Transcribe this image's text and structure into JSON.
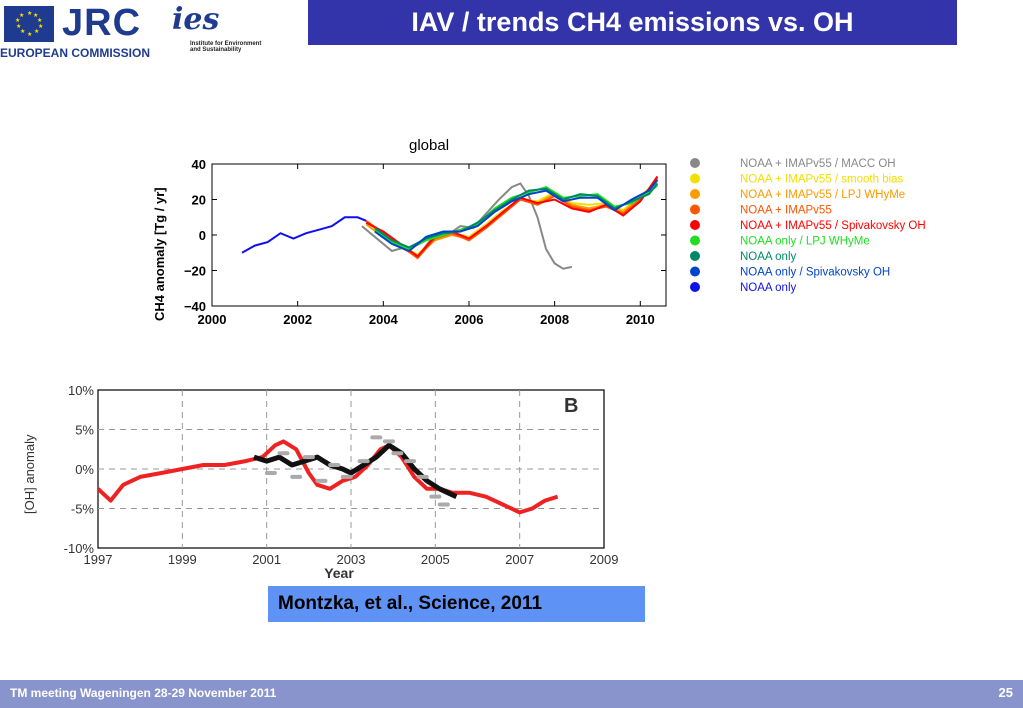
{
  "header": {
    "logo_text": "JRC",
    "organisation": "EUROPEAN COMMISSION",
    "ies_mark": "ies",
    "ies_subtitle": "Institute for Environment and Sustainability",
    "title": "IAV / trends CH4 emissions vs. OH"
  },
  "citation": "Montzka, et al., Science, 2011",
  "footer": {
    "left": "TM meeting Wageningen 28-29 November 2011",
    "page": "25"
  },
  "colors": {
    "title_bar": "#3333aa",
    "citation_box": "#5f92f5",
    "footer_bar": "#8a94cc"
  },
  "chart_data": [
    {
      "type": "line",
      "title": "global",
      "ylabel": "CH4 anomaly [Tg / yr]",
      "xlim": [
        2000,
        2010.6
      ],
      "ylim": [
        -40,
        40
      ],
      "x_ticks": [
        "2000",
        "2002",
        "2004",
        "2006",
        "2008",
        "2010"
      ],
      "y_ticks": [
        "40",
        "20",
        "0",
        "−20",
        "−40"
      ],
      "legend_position": "right",
      "series": [
        {
          "name": "NOAA + IMAPv55 / MACC OH",
          "color": "#888888",
          "x": [
            2003.5,
            2003.9,
            2004.2,
            2004.5,
            2004.8,
            2005.1,
            2005.5,
            2005.8,
            2006.1,
            2006.4,
            2006.7,
            2007.0,
            2007.2,
            2007.4,
            2007.6,
            2007.8,
            2008.0,
            2008.2,
            2008.4
          ],
          "y": [
            5,
            -3,
            -9,
            -7,
            -12,
            -3,
            0,
            5,
            4,
            12,
            20,
            27,
            29,
            22,
            10,
            -8,
            -16,
            -19,
            -18
          ]
        },
        {
          "name": "NOAA + IMAPv55 / smooth bias",
          "color": "#f0e000",
          "x": [
            2003.6,
            2004.0,
            2004.4,
            2004.8,
            2005.2,
            2005.6,
            2006.0,
            2006.4,
            2006.8,
            2007.2,
            2007.6,
            2008.0,
            2008.4,
            2008.8,
            2009.2,
            2009.6,
            2010.0,
            2010.4
          ],
          "y": [
            7,
            0,
            -6,
            -11,
            -2,
            1,
            -1,
            6,
            14,
            20,
            19,
            24,
            18,
            17,
            18,
            14,
            22,
            30
          ]
        },
        {
          "name": "NOAA + IMAPv55 / LPJ WHyMe",
          "color": "#ff9900",
          "x": [
            2003.6,
            2004.0,
            2004.4,
            2004.8,
            2005.2,
            2005.6,
            2006.0,
            2006.4,
            2006.8,
            2007.2,
            2007.6,
            2008.0,
            2008.4,
            2008.8,
            2009.2,
            2009.6,
            2010.0,
            2010.4
          ],
          "y": [
            6,
            -1,
            -7,
            -12,
            -3,
            0,
            -2,
            5,
            13,
            21,
            18,
            23,
            17,
            15,
            17,
            13,
            21,
            31
          ]
        },
        {
          "name": "NOAA + IMAPv55",
          "color": "#ff5500",
          "x": [
            2003.6,
            2004.0,
            2004.4,
            2004.8,
            2005.2,
            2005.6,
            2006.0,
            2006.4,
            2006.8,
            2007.2,
            2007.6,
            2008.0,
            2008.4,
            2008.8,
            2009.2,
            2009.6,
            2010.0,
            2010.4
          ],
          "y": [
            8,
            1,
            -6,
            -13,
            -2,
            1,
            -3,
            4,
            12,
            20,
            17,
            22,
            16,
            14,
            16,
            12,
            20,
            32
          ]
        },
        {
          "name": "NOAA + IMAPv55 / Spivakovsky OH",
          "color": "#ff0000",
          "x": [
            2003.6,
            2004.0,
            2004.4,
            2004.8,
            2005.2,
            2005.6,
            2006.0,
            2006.4,
            2006.8,
            2007.2,
            2007.6,
            2008.0,
            2008.4,
            2008.8,
            2009.2,
            2009.6,
            2010.0,
            2010.4
          ],
          "y": [
            7,
            2,
            -5,
            -12,
            -1,
            2,
            -2,
            5,
            13,
            21,
            18,
            20,
            15,
            13,
            17,
            11,
            19,
            33
          ]
        },
        {
          "name": "NOAA only / LPJ WHyMe",
          "color": "#22dd22",
          "x": [
            2003.8,
            2004.2,
            2004.6,
            2005.0,
            2005.4,
            2005.8,
            2006.2,
            2006.6,
            2007.0,
            2007.4,
            2007.8,
            2008.2,
            2008.6,
            2009.0,
            2009.4,
            2009.8,
            2010.2,
            2010.4
          ],
          "y": [
            3,
            -4,
            -8,
            -3,
            0,
            3,
            6,
            15,
            21,
            24,
            27,
            21,
            22,
            23,
            16,
            18,
            24,
            28
          ]
        },
        {
          "name": "NOAA only",
          "color": "#008866",
          "x": [
            2003.8,
            2004.2,
            2004.6,
            2005.0,
            2005.4,
            2005.8,
            2006.2,
            2006.6,
            2007.0,
            2007.4,
            2007.8,
            2008.2,
            2008.6,
            2009.0,
            2009.4,
            2009.8,
            2010.2,
            2010.4
          ],
          "y": [
            4,
            -3,
            -7,
            -2,
            1,
            2,
            7,
            14,
            20,
            25,
            26,
            20,
            23,
            22,
            15,
            19,
            23,
            29
          ]
        },
        {
          "name": "NOAA only / Spivakovsky OH",
          "color": "#0044cc",
          "x": [
            2003.8,
            2004.2,
            2004.6,
            2005.0,
            2005.4,
            2005.8,
            2006.2,
            2006.6,
            2007.0,
            2007.4,
            2007.8,
            2008.2,
            2008.6,
            2009.0,
            2009.4,
            2009.8,
            2010.2,
            2010.4
          ],
          "y": [
            2,
            -5,
            -9,
            -1,
            2,
            2,
            5,
            13,
            19,
            23,
            25,
            19,
            21,
            21,
            14,
            20,
            25,
            31
          ]
        },
        {
          "name": "NOAA only",
          "color": "#1010ee",
          "x": [
            2000.7,
            2001.0,
            2001.3,
            2001.6,
            2001.9,
            2002.2,
            2002.5,
            2002.8,
            2003.1,
            2003.4,
            2003.6
          ],
          "y": [
            -10,
            -6,
            -4,
            1,
            -2,
            1,
            3,
            5,
            10,
            10,
            8
          ]
        }
      ]
    },
    {
      "type": "line",
      "title": "",
      "panel_label": "B",
      "xlabel": "Year",
      "ylabel": "[OH] anomaly",
      "xlim": [
        1997,
        2009
      ],
      "ylim": [
        -10,
        10
      ],
      "x_ticks": [
        "1997",
        "1999",
        "2001",
        "2003",
        "2005",
        "2007",
        "2009"
      ],
      "y_ticks": [
        "10%",
        "5%",
        "0%",
        "-5%",
        "-10%"
      ],
      "grid": "dashed",
      "series": [
        {
          "color": "#ee2222",
          "x": [
            1997.0,
            1997.3,
            1997.6,
            1998.0,
            1998.5,
            1999.0,
            1999.5,
            2000.0,
            2000.5,
            2000.9,
            2001.2,
            2001.4,
            2001.7,
            2002.0,
            2002.2,
            2002.5,
            2002.8,
            2003.1,
            2003.4,
            2003.7,
            2003.9,
            2004.2,
            2004.5,
            2004.8,
            2005.1,
            2005.4,
            2005.8,
            2006.2,
            2006.6,
            2007.0,
            2007.3,
            2007.6,
            2007.9
          ],
          "y": [
            -2.5,
            -4,
            -2,
            -1,
            -0.5,
            0,
            0.5,
            0.5,
            1.0,
            1.5,
            3.0,
            3.5,
            2.5,
            -0.5,
            -2.0,
            -2.5,
            -1.5,
            -1.0,
            0.5,
            2.5,
            3.0,
            1.5,
            -1.0,
            -2.5,
            -2.5,
            -3.0,
            -3.0,
            -3.5,
            -4.5,
            -5.5,
            -5.0,
            -4.0,
            -3.5
          ]
        },
        {
          "color": "#111111",
          "x": [
            2000.7,
            2001.0,
            2001.3,
            2001.6,
            2001.9,
            2002.2,
            2002.5,
            2002.8,
            2003.0,
            2003.3,
            2003.6,
            2003.9,
            2004.2,
            2004.5,
            2004.8,
            2005.1,
            2005.5
          ],
          "y": [
            1.5,
            1.0,
            1.5,
            0.5,
            1.0,
            1.5,
            0.5,
            0,
            -0.5,
            0.5,
            1.5,
            3.0,
            2.0,
            0,
            -1.5,
            -2.5,
            -3.5
          ]
        },
        {
          "color": "#aaaaaa",
          "marker": "dash",
          "x": [
            2001.1,
            2001.4,
            2001.7,
            2002.0,
            2002.3,
            2002.6,
            2002.9,
            2003.3,
            2003.6,
            2003.9,
            2004.1,
            2004.4,
            2004.7,
            2005.0,
            2005.2
          ],
          "y": [
            -0.5,
            2.0,
            -1.0,
            1.5,
            -1.5,
            0.5,
            -1.0,
            1.0,
            4.0,
            3.5,
            2.0,
            1.0,
            -1.0,
            -3.5,
            -4.5
          ]
        }
      ]
    }
  ]
}
